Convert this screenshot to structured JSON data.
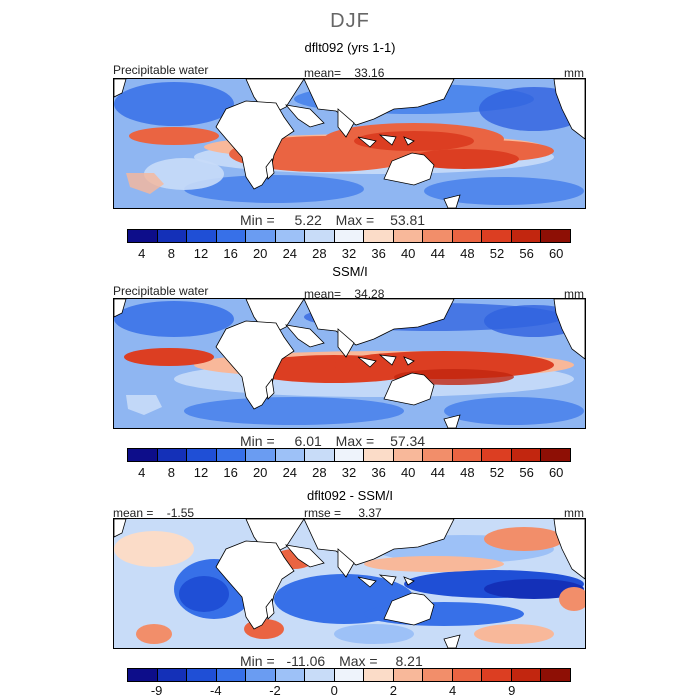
{
  "figure": {
    "season": "DJF"
  },
  "panels": [
    {
      "title": "dflt092 (yrs 1-1)",
      "variable_label": "Precipitable water",
      "stat_label": "mean=",
      "stat_value": "33.16",
      "units": "mm",
      "minmax": {
        "min_label": "Min =",
        "min": "5.22",
        "max_label": "Max =",
        "max": "53.81"
      }
    },
    {
      "title": "SSM/I",
      "variable_label": "Precipitable water",
      "stat_label": "mean=",
      "stat_value": "34.28",
      "units": "mm",
      "minmax": {
        "min_label": "Min =",
        "min": "6.01",
        "max_label": "Max =",
        "max": "57.34"
      }
    },
    {
      "title": "dflt092 - SSM/I",
      "mean_label": "mean =",
      "mean_value": "-1.55",
      "rmse_label": "rmse =",
      "rmse_value": "3.37",
      "units": "mm",
      "minmax": {
        "min_label": "Min =",
        "min": "-11.06",
        "max_label": "Max =",
        "max": "8.21"
      }
    }
  ],
  "colorbars": {
    "absolute": {
      "colors": [
        "#0d0d8a",
        "#1430b8",
        "#1f4fd6",
        "#3770e8",
        "#6a9cf2",
        "#9dc1f7",
        "#c8dcf8",
        "#eef3fb",
        "#fbdcc8",
        "#f8b89a",
        "#f28e6a",
        "#ea6442",
        "#dc3e22",
        "#c2260f",
        "#8e0f05"
      ],
      "tick_labels": [
        "4",
        "8",
        "12",
        "16",
        "20",
        "24",
        "28",
        "32",
        "36",
        "40",
        "44",
        "48",
        "52",
        "56",
        "60"
      ]
    },
    "difference": {
      "colors": [
        "#0d0d8a",
        "#1430b8",
        "#1f4fd6",
        "#3770e8",
        "#6a9cf2",
        "#9dc1f7",
        "#c8dcf8",
        "#eef3fb",
        "#fbdcc8",
        "#f8b89a",
        "#f28e6a",
        "#ea6442",
        "#dc3e22",
        "#c2260f",
        "#8e0f05"
      ],
      "tick_labels": [
        "-9",
        "-4",
        "-2",
        "0",
        "2",
        "4",
        "9"
      ]
    }
  }
}
